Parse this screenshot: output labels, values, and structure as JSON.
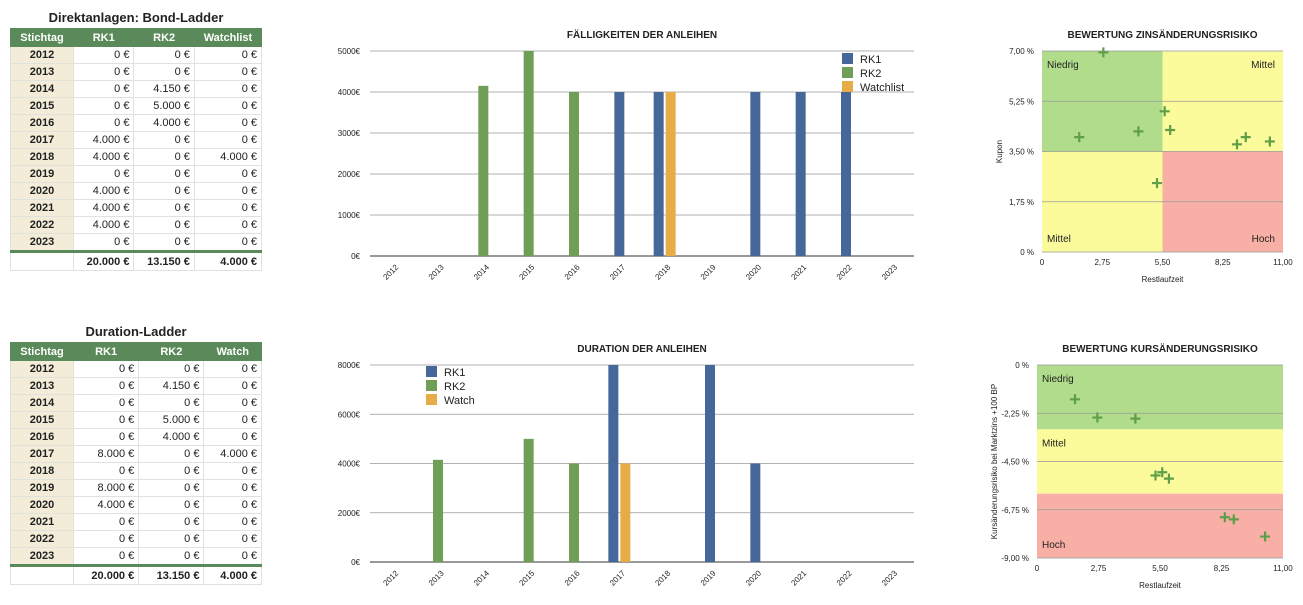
{
  "table1": {
    "title": "Direktanlagen: Bond-Ladder",
    "headers": [
      "Stichtag",
      "RK1",
      "RK2",
      "Watchlist"
    ],
    "rows": [
      [
        "2012",
        "0 €",
        "0 €",
        "0 €"
      ],
      [
        "2013",
        "0 €",
        "0 €",
        "0 €"
      ],
      [
        "2014",
        "0 €",
        "4.150 €",
        "0 €"
      ],
      [
        "2015",
        "0 €",
        "5.000 €",
        "0 €"
      ],
      [
        "2016",
        "0 €",
        "4.000 €",
        "0 €"
      ],
      [
        "2017",
        "4.000 €",
        "0 €",
        "0 €"
      ],
      [
        "2018",
        "4.000 €",
        "0 €",
        "4.000 €"
      ],
      [
        "2019",
        "0 €",
        "0 €",
        "0 €"
      ],
      [
        "2020",
        "4.000 €",
        "0 €",
        "0 €"
      ],
      [
        "2021",
        "4.000 €",
        "0 €",
        "0 €"
      ],
      [
        "2022",
        "4.000 €",
        "0 €",
        "0 €"
      ],
      [
        "2023",
        "0 €",
        "0 €",
        "0 €"
      ]
    ],
    "totals": [
      "",
      "20.000 €",
      "13.150 €",
      "4.000 €"
    ]
  },
  "table2": {
    "title": "Duration-Ladder",
    "headers": [
      "Stichtag",
      "RK1",
      "RK2",
      "Watch"
    ],
    "rows": [
      [
        "2012",
        "0 €",
        "0 €",
        "0 €"
      ],
      [
        "2013",
        "0 €",
        "4.150 €",
        "0 €"
      ],
      [
        "2014",
        "0 €",
        "0 €",
        "0 €"
      ],
      [
        "2015",
        "0 €",
        "5.000 €",
        "0 €"
      ],
      [
        "2016",
        "0 €",
        "4.000 €",
        "0 €"
      ],
      [
        "2017",
        "8.000 €",
        "0 €",
        "4.000 €"
      ],
      [
        "2018",
        "0 €",
        "0 €",
        "0 €"
      ],
      [
        "2019",
        "8.000 €",
        "0 €",
        "0 €"
      ],
      [
        "2020",
        "4.000 €",
        "0 €",
        "0 €"
      ],
      [
        "2021",
        "0 €",
        "0 €",
        "0 €"
      ],
      [
        "2022",
        "0 €",
        "0 €",
        "0 €"
      ],
      [
        "2023",
        "0 €",
        "0 €",
        "0 €"
      ]
    ],
    "totals": [
      "",
      "20.000 €",
      "13.150 €",
      "4.000 €"
    ]
  },
  "colors": {
    "rk1": "#46679a",
    "rk2": "#6f9e56",
    "watch": "#e6ac48",
    "zone_green": "#b0dc8c",
    "zone_yellow": "#fbfb9c",
    "zone_red": "#f8b0a6",
    "marker": "#5e9e48",
    "header_green": "#5a8a5a"
  },
  "chart_data": [
    {
      "type": "bar",
      "title": "FÄLLIGKEITEN DER ANLEIHEN",
      "categories": [
        "2012",
        "2013",
        "2014",
        "2015",
        "2016",
        "2017",
        "2018",
        "2019",
        "2020",
        "2021",
        "2022",
        "2023"
      ],
      "series": [
        {
          "name": "RK1",
          "values": [
            0,
            0,
            0,
            0,
            0,
            4000,
            4000,
            0,
            4000,
            4000,
            4000,
            0
          ]
        },
        {
          "name": "RK2",
          "values": [
            0,
            0,
            4150,
            5000,
            4000,
            0,
            0,
            0,
            0,
            0,
            0,
            0
          ]
        },
        {
          "name": "Watchlist",
          "values": [
            0,
            0,
            0,
            0,
            0,
            0,
            4000,
            0,
            0,
            0,
            0,
            0
          ]
        }
      ],
      "yticks": [
        "0€",
        "1000€",
        "2000€",
        "3000€",
        "4000€",
        "5000€"
      ],
      "ylim": [
        0,
        5000
      ],
      "grid": true,
      "legend": "top-right"
    },
    {
      "type": "bar",
      "title": "DURATION DER ANLEIHEN",
      "categories": [
        "2012",
        "2013",
        "2014",
        "2015",
        "2016",
        "2017",
        "2018",
        "2019",
        "2020",
        "2021",
        "2022",
        "2023"
      ],
      "series": [
        {
          "name": "RK1",
          "values": [
            0,
            0,
            0,
            0,
            0,
            8000,
            0,
            8000,
            4000,
            0,
            0,
            0
          ]
        },
        {
          "name": "RK2",
          "values": [
            0,
            4150,
            0,
            5000,
            4000,
            0,
            0,
            0,
            0,
            0,
            0,
            0
          ]
        },
        {
          "name": "Watch",
          "values": [
            0,
            0,
            0,
            0,
            0,
            4000,
            0,
            0,
            0,
            0,
            0,
            0
          ]
        }
      ],
      "yticks": [
        "0€",
        "2000€",
        "4000€",
        "6000€",
        "8000€"
      ],
      "ylim": [
        0,
        8000
      ],
      "grid": true,
      "legend": "top-left"
    },
    {
      "type": "scatter",
      "title": "BEWERTUNG ZINSÄNDERUNGSRISIKO",
      "xlabel": "Restlaufzeit",
      "ylabel": "Kupon",
      "xlim": [
        0,
        11
      ],
      "ylim": [
        0,
        7
      ],
      "xticks": [
        "0",
        "2,75",
        "5,50",
        "8,25",
        "11,00"
      ],
      "yticks": [
        "0 %",
        "1,75 %",
        "3,50 %",
        "5,25 %",
        "7,00 %"
      ],
      "zones": [
        {
          "label": "Niedrig",
          "x": [
            0,
            5.5
          ],
          "y": [
            3.5,
            7
          ],
          "color": "green",
          "label_pos": "top-left"
        },
        {
          "label": "Mittel",
          "x": [
            5.5,
            11
          ],
          "y": [
            3.5,
            7
          ],
          "color": "yellow",
          "label_pos": "top-right"
        },
        {
          "label": "Mittel",
          "x": [
            0,
            5.5
          ],
          "y": [
            0,
            3.5
          ],
          "color": "yellow",
          "label_pos": "bottom-left"
        },
        {
          "label": "Hoch",
          "x": [
            5.5,
            11
          ],
          "y": [
            0,
            3.5
          ],
          "color": "red",
          "label_pos": "bottom-right"
        }
      ],
      "points": [
        {
          "x": 2.8,
          "y": 6.95
        },
        {
          "x": 1.7,
          "y": 4.0
        },
        {
          "x": 4.4,
          "y": 4.2
        },
        {
          "x": 5.25,
          "y": 2.4
        },
        {
          "x": 5.6,
          "y": 4.9
        },
        {
          "x": 5.85,
          "y": 4.25
        },
        {
          "x": 8.9,
          "y": 3.75
        },
        {
          "x": 9.3,
          "y": 4.0
        },
        {
          "x": 10.4,
          "y": 3.85
        }
      ]
    },
    {
      "type": "scatter",
      "title": "BEWERTUNG KURSÄNDERUNGSRISIKO",
      "xlabel": "Restlaufzeit",
      "ylabel": "Kursänderungsrisiko bei Marktzins +100 BP",
      "xlim": [
        0,
        11
      ],
      "ylim": [
        -9,
        0
      ],
      "xticks": [
        "0",
        "2,75",
        "5,50",
        "8,25",
        "11,00"
      ],
      "yticks": [
        "0 %",
        "-2,25 %",
        "-4,50 %",
        "-6,75 %",
        "-9,00 %"
      ],
      "zones": [
        {
          "label": "Niedrig",
          "y": [
            -3,
            0
          ],
          "color": "green",
          "label_pos": "top-left"
        },
        {
          "label": "Mittel",
          "y": [
            -6,
            -3
          ],
          "color": "yellow",
          "label_pos": "top-left"
        },
        {
          "label": "Hoch",
          "y": [
            -9,
            -6
          ],
          "color": "red",
          "label_pos": "bottom-left"
        }
      ],
      "points": [
        {
          "x": 1.7,
          "y": -1.6
        },
        {
          "x": 2.7,
          "y": -2.45
        },
        {
          "x": 4.4,
          "y": -2.5
        },
        {
          "x": 5.3,
          "y": -5.15
        },
        {
          "x": 5.6,
          "y": -5.0
        },
        {
          "x": 5.9,
          "y": -5.3
        },
        {
          "x": 8.4,
          "y": -7.1
        },
        {
          "x": 8.8,
          "y": -7.2
        },
        {
          "x": 10.2,
          "y": -8.0
        }
      ]
    }
  ]
}
